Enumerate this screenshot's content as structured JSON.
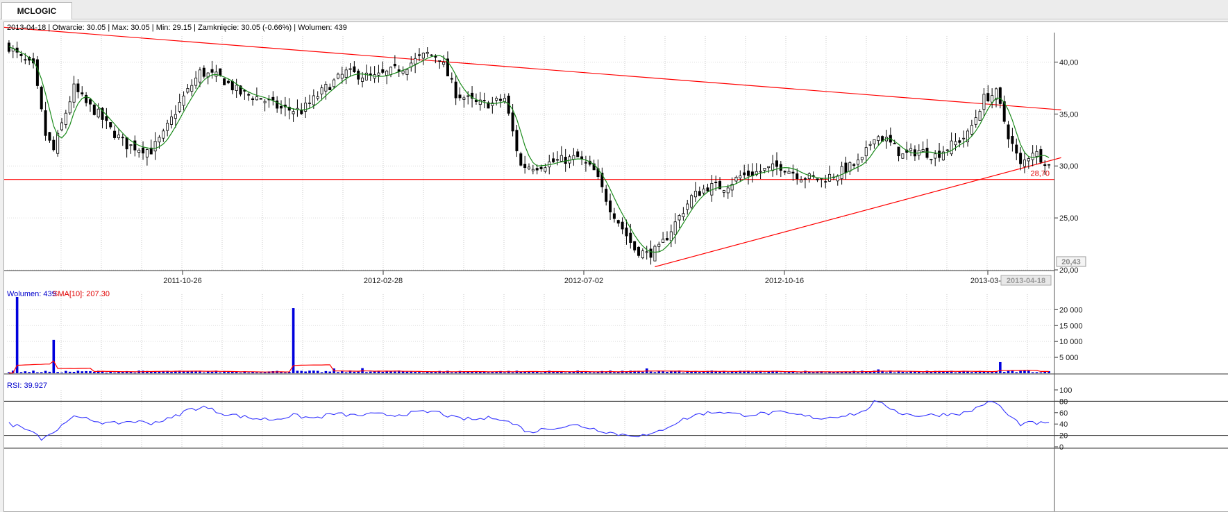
{
  "tab": {
    "label": "MCLOGIC"
  },
  "header": {
    "date": "2013-04-18",
    "open_text": "Otwarcie: 30.05",
    "max_text": "Max: 30.05",
    "min_text": "Min: 29.15",
    "close_text": "Zamknięcie: 30.05 (-0.66%)",
    "volume_text": "Wolumen: 439"
  },
  "colors": {
    "candle": "#000000",
    "sma": "#1a8a1a",
    "trend": "#ff0000",
    "volume": "#0000dd",
    "volume_sma": "#ff0000",
    "rsi": "#3333ff"
  },
  "chart_data": [
    {
      "type": "candlestick",
      "panel": "price",
      "x_ticks": [
        "2011-10-26",
        "2012-02-28",
        "2012-07-02",
        "2012-10-16",
        "2013-03-1",
        "2013-04-18"
      ],
      "y_ticks": [
        "40,00",
        "35,00",
        "30,00",
        "25,00",
        "20,00"
      ],
      "ylim": [
        20,
        42.5
      ],
      "min_label": "20,43",
      "level_label": "28,70",
      "support_level": 28.7,
      "trendlines": [
        {
          "from": {
            "bar": -3,
            "price": 43.4
          },
          "to": {
            "bar": 259,
            "price": 35.4
          }
        },
        {
          "from": {
            "bar": 159,
            "price": 20.3
          },
          "to": {
            "bar": 259,
            "price": 30.8
          }
        }
      ],
      "ohlc_knots": [
        {
          "bar": 0,
          "close": 41.5
        },
        {
          "bar": 3,
          "close": 40.3
        },
        {
          "bar": 6,
          "close": 39.5
        },
        {
          "bar": 9,
          "close": 33.0
        },
        {
          "bar": 11,
          "close": 31.5
        },
        {
          "bar": 13,
          "close": 34.0
        },
        {
          "bar": 16,
          "close": 37.5
        },
        {
          "bar": 19,
          "close": 36.0
        },
        {
          "bar": 22,
          "close": 35.0
        },
        {
          "bar": 25,
          "close": 33.5
        },
        {
          "bar": 29,
          "close": 32.0
        },
        {
          "bar": 35,
          "close": 31.5
        },
        {
          "bar": 38,
          "close": 33.0
        },
        {
          "bar": 42,
          "close": 36.0
        },
        {
          "bar": 47,
          "close": 39.0
        },
        {
          "bar": 52,
          "close": 38.5
        },
        {
          "bar": 57,
          "close": 37.0
        },
        {
          "bar": 62,
          "close": 36.5
        },
        {
          "bar": 67,
          "close": 35.5
        },
        {
          "bar": 72,
          "close": 35.3
        },
        {
          "bar": 78,
          "close": 37.5
        },
        {
          "bar": 83,
          "close": 39.0
        },
        {
          "bar": 90,
          "close": 38.5
        },
        {
          "bar": 97,
          "close": 39.5
        },
        {
          "bar": 103,
          "close": 40.8
        },
        {
          "bar": 106,
          "close": 40.5
        },
        {
          "bar": 110,
          "close": 37.0
        },
        {
          "bar": 115,
          "close": 36.0
        },
        {
          "bar": 119,
          "close": 36.0
        },
        {
          "bar": 122,
          "close": 36.5
        },
        {
          "bar": 126,
          "close": 30.0
        },
        {
          "bar": 130,
          "close": 30.0
        },
        {
          "bar": 135,
          "close": 30.5
        },
        {
          "bar": 140,
          "close": 30.8
        },
        {
          "bar": 144,
          "close": 29.5
        },
        {
          "bar": 148,
          "close": 26.0
        },
        {
          "bar": 151,
          "close": 24.0
        },
        {
          "bar": 154,
          "close": 22.0
        },
        {
          "bar": 157,
          "close": 21.5
        },
        {
          "bar": 160,
          "close": 22.0
        },
        {
          "bar": 164,
          "close": 24.5
        },
        {
          "bar": 168,
          "close": 27.0
        },
        {
          "bar": 172,
          "close": 28.0
        },
        {
          "bar": 176,
          "close": 28.0
        },
        {
          "bar": 180,
          "close": 29.0
        },
        {
          "bar": 185,
          "close": 29.5
        },
        {
          "bar": 190,
          "close": 30.0
        },
        {
          "bar": 195,
          "close": 29.0
        },
        {
          "bar": 200,
          "close": 28.7
        },
        {
          "bar": 205,
          "close": 29.5
        },
        {
          "bar": 210,
          "close": 30.5
        },
        {
          "bar": 213,
          "close": 33.0
        },
        {
          "bar": 216,
          "close": 32.5
        },
        {
          "bar": 220,
          "close": 31.0
        },
        {
          "bar": 224,
          "close": 31.5
        },
        {
          "bar": 228,
          "close": 31.0
        },
        {
          "bar": 232,
          "close": 32.0
        },
        {
          "bar": 236,
          "close": 33.0
        },
        {
          "bar": 240,
          "close": 36.5
        },
        {
          "bar": 243,
          "close": 37.0
        },
        {
          "bar": 246,
          "close": 33.0
        },
        {
          "bar": 249,
          "close": 30.0
        },
        {
          "bar": 252,
          "close": 31.5
        },
        {
          "bar": 255,
          "close": 30.5
        },
        {
          "bar": 256,
          "close": 30.05
        }
      ],
      "indicator": {
        "name": "SMA",
        "color": "#1a8a1a"
      }
    },
    {
      "type": "bar",
      "panel": "volume",
      "title_label": "Wolumen: 439",
      "sma_label": "SMA[10]: 207.30",
      "y_ticks": [
        "20 000",
        "15 000",
        "10 000",
        "5 000"
      ],
      "ylim": [
        0,
        24000
      ],
      "base_volume": 500,
      "spikes": [
        {
          "bar": 2,
          "value": 24000
        },
        {
          "bar": 11,
          "value": 10500
        },
        {
          "bar": 70,
          "value": 20500
        },
        {
          "bar": 80,
          "value": 1500
        },
        {
          "bar": 87,
          "value": 1600
        },
        {
          "bar": 157,
          "value": 1500
        },
        {
          "bar": 214,
          "value": 1200
        },
        {
          "bar": 244,
          "value": 3500
        }
      ]
    },
    {
      "type": "line",
      "panel": "rsi",
      "title_label": "RSI: 39.927",
      "y_ticks": [
        "100",
        "80",
        "60",
        "40",
        "20",
        "0"
      ],
      "ylim": [
        0,
        100
      ],
      "levels": [
        80,
        20
      ],
      "knots": [
        {
          "bar": 0,
          "value": 40
        },
        {
          "bar": 5,
          "value": 32
        },
        {
          "bar": 8,
          "value": 15
        },
        {
          "bar": 12,
          "value": 30
        },
        {
          "bar": 15,
          "value": 52
        },
        {
          "bar": 20,
          "value": 48
        },
        {
          "bar": 25,
          "value": 40
        },
        {
          "bar": 30,
          "value": 45
        },
        {
          "bar": 35,
          "value": 42
        },
        {
          "bar": 40,
          "value": 50
        },
        {
          "bar": 44,
          "value": 65
        },
        {
          "bar": 48,
          "value": 70
        },
        {
          "bar": 52,
          "value": 60
        },
        {
          "bar": 56,
          "value": 55
        },
        {
          "bar": 60,
          "value": 50
        },
        {
          "bar": 65,
          "value": 48
        },
        {
          "bar": 70,
          "value": 55
        },
        {
          "bar": 75,
          "value": 50
        },
        {
          "bar": 80,
          "value": 58
        },
        {
          "bar": 85,
          "value": 55
        },
        {
          "bar": 90,
          "value": 57
        },
        {
          "bar": 95,
          "value": 56
        },
        {
          "bar": 100,
          "value": 60
        },
        {
          "bar": 105,
          "value": 62
        },
        {
          "bar": 110,
          "value": 50
        },
        {
          "bar": 115,
          "value": 48
        },
        {
          "bar": 120,
          "value": 52
        },
        {
          "bar": 125,
          "value": 38
        },
        {
          "bar": 128,
          "value": 25
        },
        {
          "bar": 132,
          "value": 32
        },
        {
          "bar": 136,
          "value": 35
        },
        {
          "bar": 140,
          "value": 38
        },
        {
          "bar": 145,
          "value": 30
        },
        {
          "bar": 150,
          "value": 22
        },
        {
          "bar": 155,
          "value": 20
        },
        {
          "bar": 158,
          "value": 20
        },
        {
          "bar": 162,
          "value": 35
        },
        {
          "bar": 166,
          "value": 48
        },
        {
          "bar": 170,
          "value": 58
        },
        {
          "bar": 175,
          "value": 62
        },
        {
          "bar": 180,
          "value": 56
        },
        {
          "bar": 185,
          "value": 58
        },
        {
          "bar": 190,
          "value": 60
        },
        {
          "bar": 195,
          "value": 55
        },
        {
          "bar": 200,
          "value": 50
        },
        {
          "bar": 205,
          "value": 55
        },
        {
          "bar": 210,
          "value": 60
        },
        {
          "bar": 213,
          "value": 78
        },
        {
          "bar": 216,
          "value": 72
        },
        {
          "bar": 220,
          "value": 58
        },
        {
          "bar": 224,
          "value": 55
        },
        {
          "bar": 228,
          "value": 56
        },
        {
          "bar": 232,
          "value": 58
        },
        {
          "bar": 236,
          "value": 60
        },
        {
          "bar": 240,
          "value": 76
        },
        {
          "bar": 243,
          "value": 78
        },
        {
          "bar": 246,
          "value": 55
        },
        {
          "bar": 249,
          "value": 40
        },
        {
          "bar": 252,
          "value": 42
        },
        {
          "bar": 256,
          "value": 40
        }
      ]
    }
  ]
}
